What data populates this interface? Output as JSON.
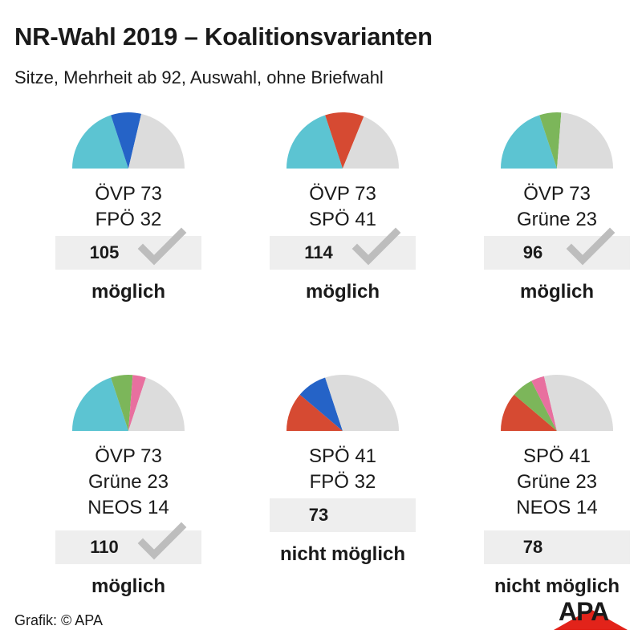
{
  "title": "NR-Wahl 2019 – Koalitionsvarianten",
  "subtitle": "Sitze, Mehrheit ab 92, Auswahl, ohne Briefwahl",
  "footer": "Grafik: © APA",
  "logo": "APA",
  "colors": {
    "ÖVP": "#5cc4d2",
    "FPÖ": "#2563c7",
    "SPÖ": "#d64a32",
    "Grüne": "#7cb65a",
    "NEOS": "#e8709f",
    "rest": "#dcdcdc",
    "check": "#bdbdbd",
    "box": "#eeeeee",
    "logo_red": "#e2231a"
  },
  "chart_data": {
    "type": "pie",
    "total_seats": 183,
    "majority": 92,
    "coalitions": [
      {
        "parties": [
          {
            "name": "ÖVP",
            "seats": 73,
            "label": "ÖVP 73"
          },
          {
            "name": "FPÖ",
            "seats": 32,
            "label": "FPÖ 32"
          }
        ],
        "sum": "105",
        "status": "möglich",
        "possible": true
      },
      {
        "parties": [
          {
            "name": "ÖVP",
            "seats": 73,
            "label": "ÖVP 73"
          },
          {
            "name": "SPÖ",
            "seats": 41,
            "label": "SPÖ 41"
          }
        ],
        "sum": "114",
        "status": "möglich",
        "possible": true
      },
      {
        "parties": [
          {
            "name": "ÖVP",
            "seats": 73,
            "label": "ÖVP 73"
          },
          {
            "name": "Grüne",
            "seats": 23,
            "label": "Grüne 23"
          }
        ],
        "sum": "96",
        "status": "möglich",
        "possible": true
      },
      {
        "parties": [
          {
            "name": "ÖVP",
            "seats": 73,
            "label": "ÖVP 73"
          },
          {
            "name": "Grüne",
            "seats": 23,
            "label": "Grüne 23"
          },
          {
            "name": "NEOS",
            "seats": 14,
            "label": "NEOS 14"
          }
        ],
        "sum": "110",
        "status": "möglich",
        "possible": true
      },
      {
        "parties": [
          {
            "name": "SPÖ",
            "seats": 41,
            "label": "SPÖ 41"
          },
          {
            "name": "FPÖ",
            "seats": 32,
            "label": "FPÖ 32"
          }
        ],
        "sum": "73",
        "status": "nicht möglich",
        "possible": false
      },
      {
        "parties": [
          {
            "name": "SPÖ",
            "seats": 41,
            "label": "SPÖ 41"
          },
          {
            "name": "Grüne",
            "seats": 23,
            "label": "Grüne 23"
          },
          {
            "name": "NEOS",
            "seats": 14,
            "label": "NEOS 14"
          }
        ],
        "sum": "78",
        "status": "nicht möglich",
        "possible": false
      }
    ]
  }
}
